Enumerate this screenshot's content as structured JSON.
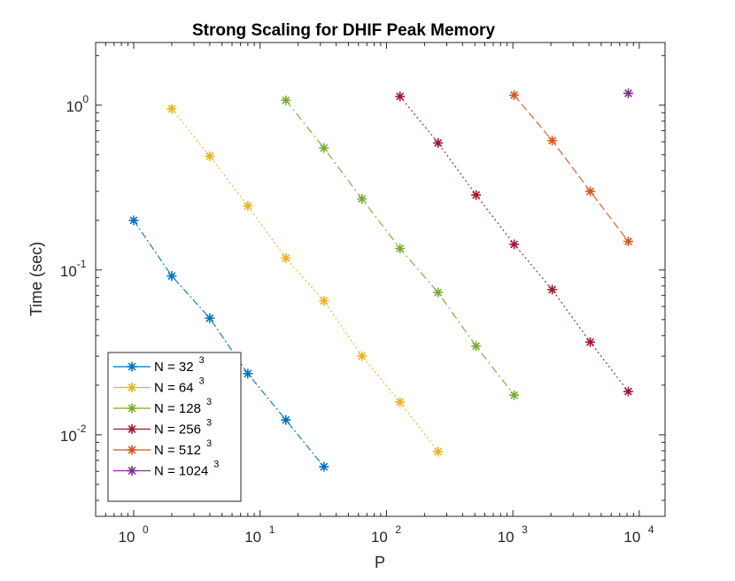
{
  "chart_data": {
    "type": "line",
    "title": "Strong Scaling for DHIF Peak Memory",
    "xlabel": "P",
    "ylabel": "Time (sec)",
    "xscale": "log",
    "yscale": "log",
    "xlim": [
      0.5,
      16000
    ],
    "ylim": [
      0.0032,
      2.4
    ],
    "xticks": [
      {
        "base": "10",
        "exp": "0",
        "value": 1
      },
      {
        "base": "10",
        "exp": "1",
        "value": 10
      },
      {
        "base": "10",
        "exp": "2",
        "value": 100
      },
      {
        "base": "10",
        "exp": "3",
        "value": 1000
      },
      {
        "base": "10",
        "exp": "4",
        "value": 10000
      }
    ],
    "yticks": [
      {
        "base": "10",
        "exp": "-2",
        "value": 0.01
      },
      {
        "base": "10",
        "exp": "-1",
        "value": 0.1
      },
      {
        "base": "10",
        "exp": "0",
        "value": 1
      }
    ],
    "legend_position": "bottom-left",
    "grid": false,
    "series": [
      {
        "name": "N = 32",
        "sup": "3",
        "color": "#0072BD",
        "x": [
          1,
          2,
          4,
          8,
          16,
          32
        ],
        "y": [
          0.2,
          0.092,
          0.051,
          0.0235,
          0.0123,
          0.0064
        ]
      },
      {
        "name": "N = 64",
        "sup": "3",
        "color": "#EDB120",
        "x": [
          2,
          4,
          8,
          16,
          32,
          64,
          128,
          256
        ],
        "y": [
          0.95,
          0.49,
          0.245,
          0.118,
          0.065,
          0.03,
          0.0158,
          0.0079
        ]
      },
      {
        "name": "N = 128",
        "sup": "3",
        "color": "#77AC30",
        "x": [
          16,
          32,
          64,
          128,
          256,
          512,
          1024
        ],
        "y": [
          1.07,
          0.55,
          0.27,
          0.135,
          0.073,
          0.0345,
          0.0174
        ]
      },
      {
        "name": "N = 256",
        "sup": "3",
        "color": "#A2142F",
        "x": [
          128,
          256,
          512,
          1024,
          2048,
          4096,
          8192
        ],
        "y": [
          1.13,
          0.59,
          0.285,
          0.143,
          0.076,
          0.0365,
          0.0183
        ]
      },
      {
        "name": "N = 512",
        "sup": "3",
        "color": "#D95319",
        "x": [
          1024,
          2048,
          4096,
          8192
        ],
        "y": [
          1.15,
          0.61,
          0.3,
          0.149
        ]
      },
      {
        "name": "N = 1024",
        "sup": "3",
        "color": "#7E2F8E",
        "x": [
          8192
        ],
        "y": [
          1.18
        ]
      }
    ]
  }
}
